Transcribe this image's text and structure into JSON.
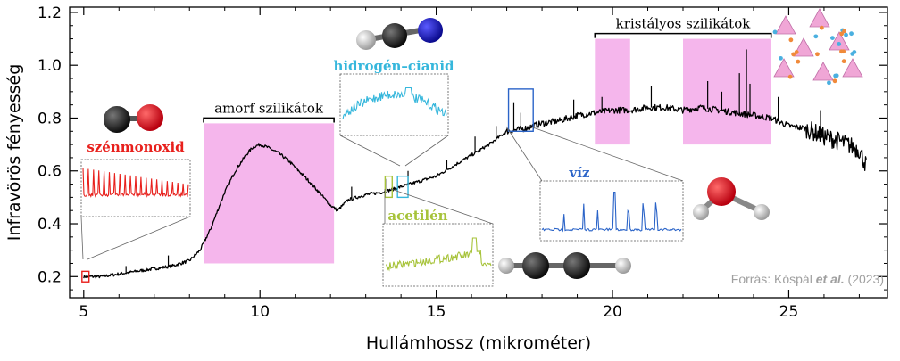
{
  "chart_data": {
    "type": "line",
    "xlabel": "Hullámhossz (mikrométer)",
    "ylabel": "Infravörös fényesség",
    "xlim": [
      4.6,
      27.8
    ],
    "ylim": [
      0.12,
      1.22
    ],
    "xticks": [
      5,
      10,
      15,
      20,
      25
    ],
    "yticks": [
      0.2,
      0.4,
      0.6,
      0.8,
      1.0,
      1.2
    ],
    "xtick_labels": [
      "5",
      "10",
      "15",
      "20",
      "25"
    ],
    "ytick_labels": [
      "0.2",
      "0.4",
      "0.6",
      "0.8",
      "1.0",
      "1.2"
    ],
    "grid": false,
    "series": [
      {
        "color": "#000000",
        "x": [
          5.0,
          5.5,
          6.0,
          6.5,
          7.0,
          7.5,
          8.0,
          8.3,
          8.6,
          9.0,
          9.3,
          9.6,
          9.8,
          10.0,
          10.2,
          10.5,
          10.8,
          11.1,
          11.4,
          11.8,
          12.0,
          12.2,
          12.5,
          13.0,
          13.5,
          14.0,
          14.5,
          15.0,
          15.5,
          16.0,
          16.5,
          17.0,
          17.5,
          18.0,
          18.5,
          19.0,
          19.5,
          20.0,
          20.5,
          21.0,
          21.5,
          22.0,
          22.5,
          23.0,
          23.5,
          24.0,
          24.5,
          25.0,
          25.5,
          26.0,
          26.5,
          27.0,
          27.2
        ],
        "y": [
          0.2,
          0.2,
          0.21,
          0.22,
          0.23,
          0.24,
          0.26,
          0.3,
          0.38,
          0.52,
          0.6,
          0.66,
          0.69,
          0.7,
          0.69,
          0.67,
          0.64,
          0.6,
          0.56,
          0.5,
          0.47,
          0.45,
          0.49,
          0.51,
          0.52,
          0.54,
          0.56,
          0.58,
          0.62,
          0.66,
          0.7,
          0.75,
          0.76,
          0.78,
          0.79,
          0.81,
          0.82,
          0.83,
          0.83,
          0.84,
          0.84,
          0.83,
          0.84,
          0.83,
          0.82,
          0.81,
          0.8,
          0.77,
          0.76,
          0.73,
          0.71,
          0.68,
          0.62
        ]
      }
    ],
    "spikes": [
      {
        "x": 6.2,
        "y": 0.24
      },
      {
        "x": 7.4,
        "y": 0.28
      },
      {
        "x": 12.6,
        "y": 0.54
      },
      {
        "x": 13.6,
        "y": 0.57
      },
      {
        "x": 14.2,
        "y": 0.6
      },
      {
        "x": 15.3,
        "y": 0.64
      },
      {
        "x": 16.1,
        "y": 0.73
      },
      {
        "x": 16.7,
        "y": 0.77
      },
      {
        "x": 17.2,
        "y": 0.86
      },
      {
        "x": 17.4,
        "y": 0.82
      },
      {
        "x": 18.9,
        "y": 0.87
      },
      {
        "x": 19.7,
        "y": 0.88
      },
      {
        "x": 21.1,
        "y": 0.92
      },
      {
        "x": 22.7,
        "y": 0.94
      },
      {
        "x": 23.1,
        "y": 0.9
      },
      {
        "x": 23.6,
        "y": 0.97
      },
      {
        "x": 23.8,
        "y": 1.06
      },
      {
        "x": 23.9,
        "y": 0.93
      },
      {
        "x": 24.7,
        "y": 0.88
      },
      {
        "x": 25.9,
        "y": 0.83
      }
    ],
    "regions": [
      {
        "label": "amorf szilikátok",
        "x0": 8.4,
        "x1": 12.1,
        "y0": 0.25,
        "y1": 0.78,
        "bracket_y": 0.8,
        "color": "#f5b6ec"
      },
      {
        "label": "kristályos szilikátok",
        "x0": 19.5,
        "x1": 20.5,
        "y0": 0.7,
        "y1": 1.1,
        "bracket_y": 1.12,
        "color": "#f5b6ec"
      },
      {
        "label": "",
        "x0": 22.0,
        "x1": 24.5,
        "y0": 0.7,
        "y1": 1.1,
        "bracket_y": 1.12,
        "color": "#f5b6ec"
      }
    ],
    "annotations": [
      {
        "label": "szénmonoxid",
        "color": "#e8201c",
        "box_x": [
          4.95,
          5.15
        ],
        "box_y": [
          0.18,
          0.22
        ]
      },
      {
        "label": "hidrogén–cianid",
        "color": "#36b7dc",
        "box_x": [
          13.9,
          14.2
        ],
        "box_y": [
          0.5,
          0.58
        ]
      },
      {
        "label": "acetilén",
        "color": "#a7c33a",
        "box_x": [
          13.55,
          13.75
        ],
        "box_y": [
          0.5,
          0.58
        ]
      },
      {
        "label": "víz",
        "color": "#2b64c8",
        "box_x": [
          17.05,
          17.75
        ],
        "box_y": [
          0.75,
          0.91
        ]
      }
    ],
    "source": "Forrás: Kóspál et al. (2023)"
  },
  "colors": {
    "co_line": "#e8201c",
    "hcn_line": "#36b7dc",
    "c2h2_line": "#a7c33a",
    "water_line": "#2b64c8",
    "region_fill": "#f5b6ec",
    "source_text": "#a0a0a0"
  },
  "icons": {
    "co_molecule": "carbon-monoxide-molecule-icon",
    "hcn_molecule": "hydrogen-cyanide-molecule-icon",
    "c2h2_molecule": "acetylene-molecule-icon",
    "water_molecule": "water-molecule-icon",
    "crystal": "crystalline-silicate-lattice-icon"
  }
}
